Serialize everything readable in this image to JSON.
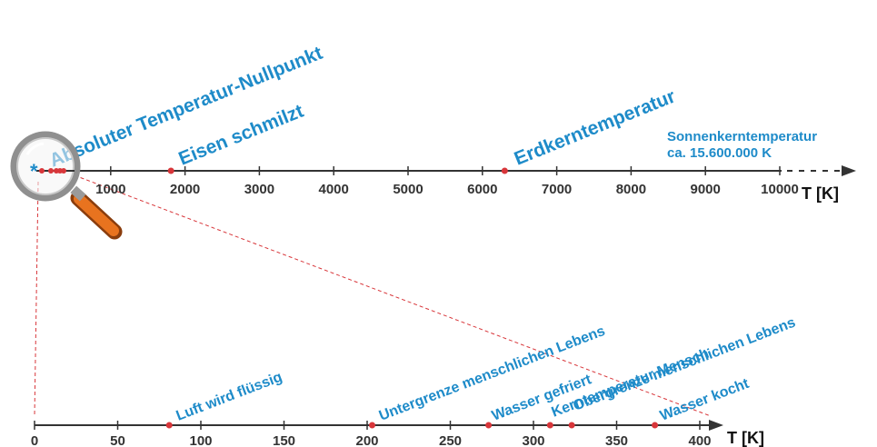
{
  "colors": {
    "label": "#1e8bc9",
    "marker": "#d8363a",
    "axis": "#333333",
    "zoom_line": "#d8363a",
    "magnifier_handle": "#e8731f"
  },
  "top_axis": {
    "unit": "T [K]",
    "ticks": [
      "1000",
      "2000",
      "3000",
      "4000",
      "5000",
      "6000",
      "7000",
      "8000",
      "9000",
      "10000"
    ],
    "domain": [
      0,
      10000
    ],
    "events": [
      {
        "label": "Absoluter Temperatur-Nullpunkt",
        "value": 0
      },
      {
        "label": "Eisen schmilzt",
        "value": 1811
      },
      {
        "label": "Erdkerntemperatur",
        "value": 6300
      }
    ],
    "note_line1": "Sonnenkerntemperatur",
    "note_line2": "ca. 15.600.000 K"
  },
  "bottom_axis": {
    "unit": "T [K]",
    "ticks": [
      "0",
      "50",
      "100",
      "150",
      "200",
      "250",
      "300",
      "350",
      "400"
    ],
    "domain": [
      0,
      400
    ],
    "events": [
      {
        "label": "Luft wird flüssig",
        "value": 81
      },
      {
        "label": "Untergrenze menschlichen Lebens",
        "value": 203
      },
      {
        "label": "Wasser gefriert",
        "value": 273
      },
      {
        "label": "Kerntemperatur Mensch",
        "value": 310
      },
      {
        "label": "Obergrenze menschlichen Lebens",
        "value": 323
      },
      {
        "label": "Wasser kocht",
        "value": 373
      }
    ]
  }
}
